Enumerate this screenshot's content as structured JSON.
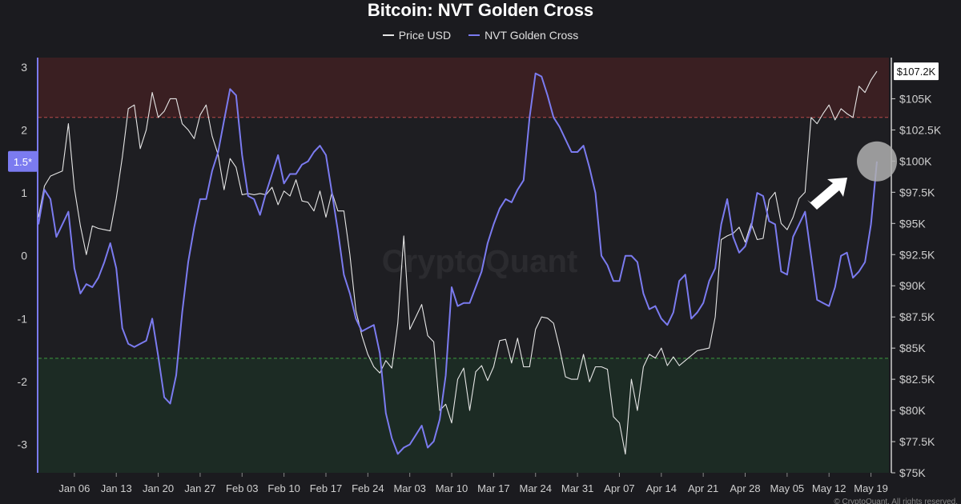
{
  "chart_data": {
    "type": "line",
    "title": "Bitcoin: NVT Golden Cross",
    "watermark": "CryptoQuant",
    "footer_text": "© CryptoQuant. All rights reserved.",
    "legend_position": "top-center",
    "grid": false,
    "x_ticks": [
      "Jan 06",
      "Jan 13",
      "Jan 20",
      "Jan 27",
      "Feb 03",
      "Feb 10",
      "Feb 17",
      "Feb 24",
      "Mar 03",
      "Mar 10",
      "Mar 17",
      "Mar 24",
      "Mar 31",
      "Apr 07",
      "Apr 14",
      "Apr 21",
      "Apr 28",
      "May 05",
      "May 12",
      "May 19"
    ],
    "x_tick_days": [
      7,
      14,
      21,
      28,
      35,
      42,
      49,
      56,
      63,
      70,
      77,
      84,
      91,
      98,
      105,
      112,
      119,
      126,
      133,
      140
    ],
    "xlim_days": [
      1,
      143
    ],
    "left_axis": {
      "ticks": [
        3,
        2,
        1,
        0,
        -1,
        -2,
        -3
      ],
      "tick_labels": [
        "3",
        "2",
        "1",
        "0",
        "-1",
        "-2",
        "-3"
      ],
      "ylim": [
        -3.45,
        3.15
      ]
    },
    "right_axis": {
      "ticks": [
        105000,
        102500,
        100000,
        97500,
        95000,
        92500,
        90000,
        87500,
        85000,
        82500,
        80000,
        77500,
        75000
      ],
      "tick_labels": [
        "$105K",
        "$102.5K",
        "$100K",
        "$97.5K",
        "$95K",
        "$92.5K",
        "$90K",
        "$87.5K",
        "$85K",
        "$82.5K",
        "$80K",
        "$77.5K",
        "$75K"
      ],
      "ylim": [
        75000,
        108300
      ]
    },
    "bands": [
      {
        "from": 2.2,
        "to": 3.15,
        "color": "#3a1f22"
      },
      {
        "from": -3.45,
        "to": -1.63,
        "color": "#1c2b24"
      }
    ],
    "threshold_lines": [
      {
        "value": 2.2,
        "color": "#b84a4a"
      },
      {
        "value": -1.63,
        "color": "#3f9a3f"
      }
    ],
    "current_labels": {
      "price": "$107.2K",
      "price_value": 107200,
      "nvt": "1.5*",
      "nvt_value": 1.5
    },
    "series": [
      {
        "name": "Price USD",
        "color": "#e6e6e6",
        "axis": "right",
        "x_days": [
          1,
          2,
          3,
          4,
          5,
          6,
          7,
          8,
          9,
          10,
          11,
          12,
          13,
          14,
          15,
          16,
          17,
          18,
          19,
          20,
          21,
          22,
          23,
          24,
          25,
          26,
          27,
          28,
          29,
          30,
          31,
          32,
          33,
          34,
          35,
          36,
          37,
          38,
          39,
          40,
          41,
          42,
          43,
          44,
          45,
          46,
          47,
          48,
          49,
          50,
          51,
          52,
          53,
          54,
          55,
          56,
          57,
          58,
          59,
          60,
          61,
          62,
          63,
          64,
          65,
          66,
          67,
          68,
          69,
          70,
          71,
          72,
          73,
          74,
          75,
          76,
          77,
          78,
          79,
          80,
          81,
          82,
          83,
          84,
          85,
          86,
          87,
          88,
          89,
          90,
          91,
          92,
          93,
          94,
          95,
          96,
          97,
          98,
          99,
          100,
          101,
          102,
          103,
          104,
          105,
          106,
          107,
          108,
          109,
          110,
          111,
          112,
          113,
          114,
          115,
          116,
          117,
          118,
          119,
          120,
          121,
          122,
          123,
          124,
          125,
          126,
          127,
          128,
          129,
          130,
          131,
          132,
          133,
          134,
          135,
          136,
          137,
          138,
          139,
          140,
          141
        ],
        "values": [
          95500,
          98000,
          98800,
          99000,
          99200,
          103000,
          97800,
          94800,
          92500,
          94800,
          94600,
          94500,
          94400,
          97000,
          100300,
          104200,
          104500,
          101000,
          102500,
          105500,
          103500,
          104000,
          105000,
          105000,
          103000,
          102500,
          101800,
          103700,
          104500,
          102000,
          100500,
          97700,
          100200,
          99500,
          97300,
          97400,
          97300,
          97400,
          97300,
          97900,
          96500,
          97600,
          97200,
          98500,
          96800,
          96700,
          96000,
          97600,
          95500,
          97500,
          96000,
          96000,
          92500,
          88000,
          86000,
          84500,
          83500,
          83000,
          84000,
          83400,
          87000,
          94000,
          86500,
          87500,
          88500,
          86000,
          85500,
          80000,
          80500,
          79000,
          82500,
          83400,
          80000,
          83100,
          83600,
          82400,
          83500,
          85600,
          85700,
          83800,
          85800,
          83500,
          83500,
          86500,
          87500,
          87400,
          87000,
          85000,
          82700,
          82500,
          82500,
          84500,
          82300,
          83500,
          83500,
          83300,
          79500,
          79000,
          76500,
          82500,
          80000,
          83500,
          84500,
          84200,
          85000,
          83600,
          84300,
          83600,
          84000,
          84400,
          84800,
          84900,
          85000,
          87500,
          93700,
          94000,
          94200,
          94700,
          93500,
          95000,
          93700,
          93800,
          96900,
          97500,
          95000,
          94500,
          95500,
          97000,
          97500,
          103500,
          103000,
          103800,
          104500,
          103300,
          104200,
          103800,
          103500,
          106000,
          105500,
          106500,
          107200
        ]
      },
      {
        "name": "NVT Golden Cross",
        "color": "#7b7bf0",
        "axis": "left",
        "x_days": [
          1,
          2,
          3,
          4,
          5,
          6,
          7,
          8,
          9,
          10,
          11,
          12,
          13,
          14,
          15,
          16,
          17,
          18,
          19,
          20,
          21,
          22,
          23,
          24,
          25,
          26,
          27,
          28,
          29,
          30,
          31,
          32,
          33,
          34,
          35,
          36,
          37,
          38,
          39,
          40,
          41,
          42,
          43,
          44,
          45,
          46,
          47,
          48,
          49,
          50,
          51,
          52,
          53,
          54,
          55,
          56,
          57,
          58,
          59,
          60,
          61,
          62,
          63,
          64,
          65,
          66,
          67,
          68,
          69,
          70,
          71,
          72,
          73,
          74,
          75,
          76,
          77,
          78,
          79,
          80,
          81,
          82,
          83,
          84,
          85,
          86,
          87,
          88,
          89,
          90,
          91,
          92,
          93,
          94,
          95,
          96,
          97,
          98,
          99,
          100,
          101,
          102,
          103,
          104,
          105,
          106,
          107,
          108,
          109,
          110,
          111,
          112,
          113,
          114,
          115,
          116,
          117,
          118,
          119,
          120,
          121,
          122,
          123,
          124,
          125,
          126,
          127,
          128,
          129,
          130,
          131,
          132,
          133,
          134,
          135,
          136,
          137,
          138,
          139,
          140,
          141
        ],
        "values": [
          0.5,
          1.05,
          0.9,
          0.3,
          0.5,
          0.7,
          -0.2,
          -0.6,
          -0.45,
          -0.5,
          -0.35,
          -0.1,
          0.2,
          -0.2,
          -1.15,
          -1.4,
          -1.45,
          -1.4,
          -1.35,
          -1.0,
          -1.6,
          -2.25,
          -2.35,
          -1.9,
          -0.9,
          -0.1,
          0.45,
          0.9,
          0.9,
          1.35,
          1.65,
          2.15,
          2.65,
          2.55,
          1.6,
          0.95,
          0.9,
          0.65,
          1.0,
          1.3,
          1.6,
          1.15,
          1.3,
          1.3,
          1.45,
          1.5,
          1.65,
          1.75,
          1.6,
          1.0,
          0.4,
          -0.3,
          -0.6,
          -1.0,
          -1.2,
          -1.15,
          -1.1,
          -1.55,
          -2.5,
          -2.9,
          -3.15,
          -3.05,
          -3.0,
          -2.85,
          -2.7,
          -3.05,
          -2.95,
          -2.6,
          -1.9,
          -0.5,
          -0.8,
          -0.75,
          -0.75,
          -0.5,
          -0.25,
          0.2,
          0.5,
          0.75,
          0.9,
          0.85,
          1.05,
          1.2,
          2.2,
          2.9,
          2.85,
          2.55,
          2.2,
          2.05,
          1.85,
          1.65,
          1.65,
          1.75,
          1.4,
          1.0,
          0.0,
          -0.15,
          -0.4,
          -0.4,
          0.0,
          0.0,
          -0.1,
          -0.6,
          -0.85,
          -0.8,
          -1.0,
          -1.1,
          -0.9,
          -0.4,
          -0.3,
          -1.0,
          -0.9,
          -0.75,
          -0.4,
          -0.2,
          0.5,
          0.9,
          0.3,
          0.05,
          0.15,
          0.45,
          1.0,
          0.95,
          0.55,
          0.5,
          -0.25,
          -0.3,
          0.3,
          0.5,
          0.7,
          0.0,
          -0.7,
          -0.75,
          -0.8,
          -0.5,
          0.0,
          0.05,
          -0.35,
          -0.25,
          -0.1,
          0.5,
          1.5
        ]
      }
    ],
    "annotation": {
      "arrow": "white",
      "highlight": "grey-circle",
      "target_day": 141
    }
  }
}
